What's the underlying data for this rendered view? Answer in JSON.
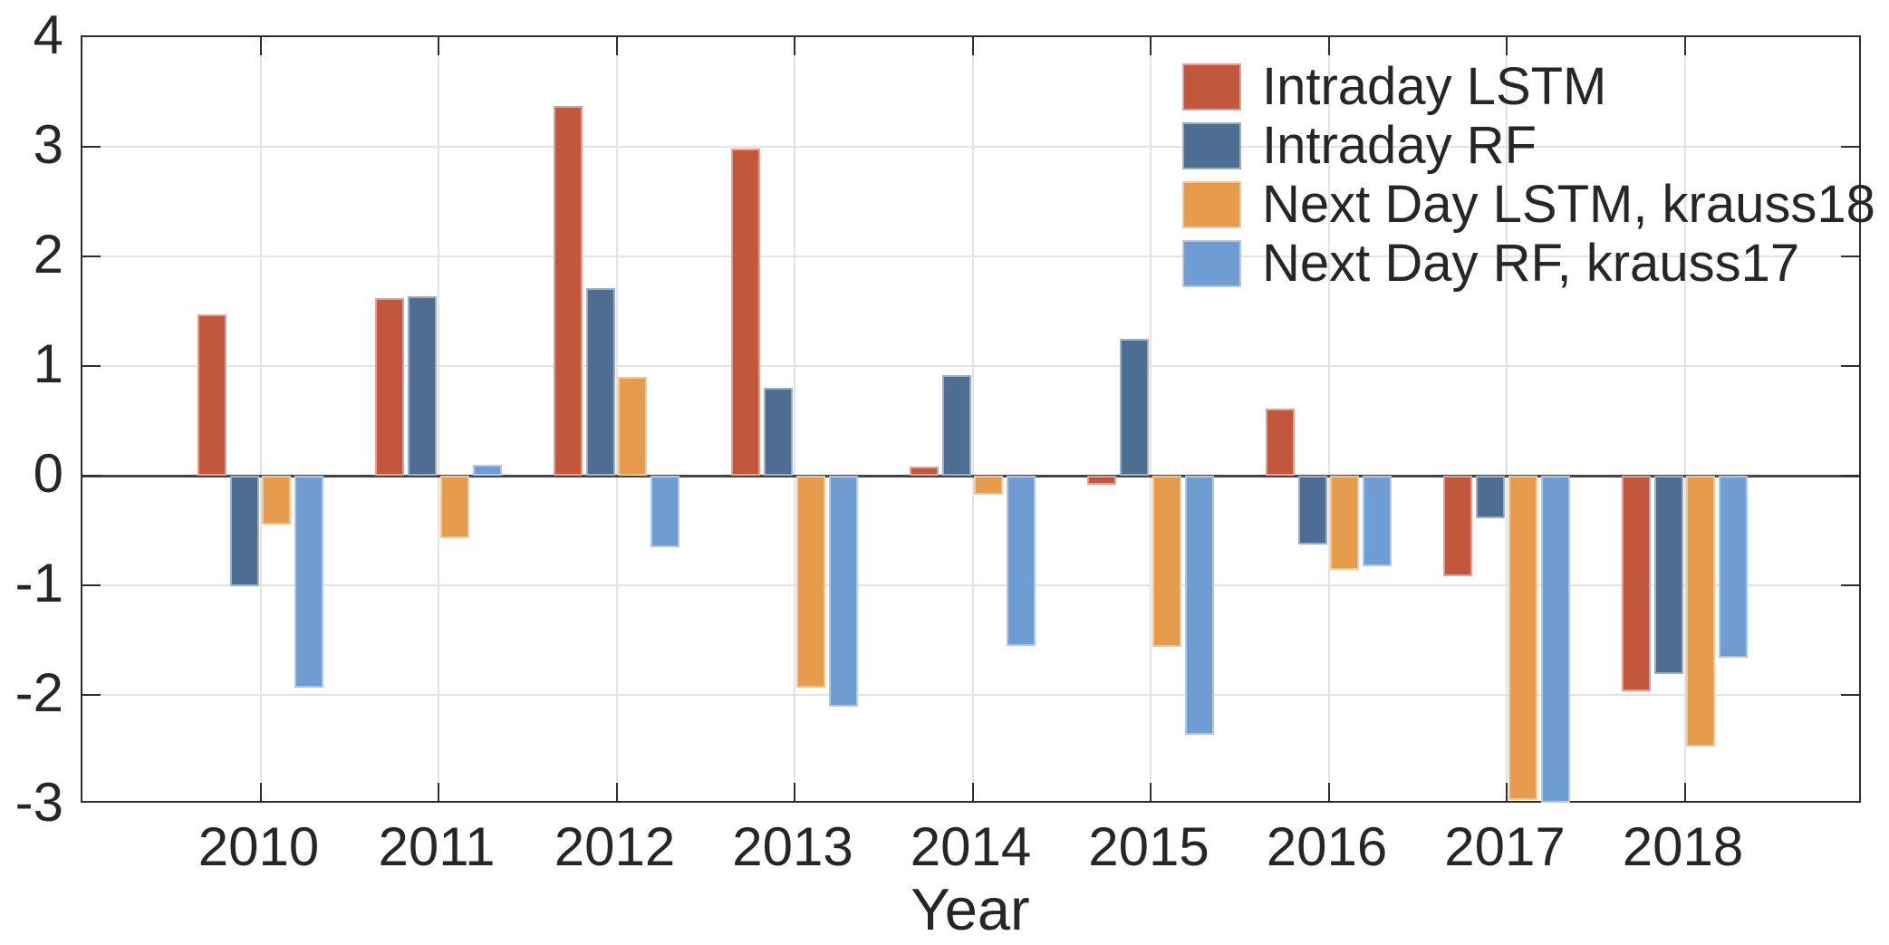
{
  "figure": {
    "background": "#ffffff",
    "text_color": "#262626"
  },
  "axes": {
    "x_label": "Year",
    "x_ticks": [
      "2010",
      "2011",
      "2012",
      "2013",
      "2014",
      "2015",
      "2016",
      "2017",
      "2018"
    ],
    "y_ticks": [
      "4",
      "3",
      "2",
      "1",
      "0",
      "-1",
      "-2",
      "-3"
    ],
    "y_tick_values": [
      4,
      3,
      2,
      1,
      0,
      -1,
      -2,
      -3
    ],
    "grid_color": "#e3e3e3",
    "axis_color": "#2e2e2e",
    "zero_line_color": "#454545"
  },
  "legend": {
    "position": "top-right",
    "items": [
      {
        "label": "Intraday LSTM",
        "color": "#c3573c"
      },
      {
        "label": "Intraday RF",
        "color": "#4d6d93"
      },
      {
        "label": "Next Day LSTM, krauss18",
        "color": "#e69a4b"
      },
      {
        "label": "Next Day RF, krauss17",
        "color": "#6e9cd3"
      }
    ]
  },
  "chart_data": {
    "type": "bar",
    "title": "",
    "xlabel": "Year",
    "ylabel": "",
    "ylim": [
      -3,
      4
    ],
    "grid": true,
    "legend_position": "top-right",
    "categories": [
      "2010",
      "2011",
      "2012",
      "2013",
      "2014",
      "2015",
      "2016",
      "2017",
      "2018"
    ],
    "series": [
      {
        "name": "Intraday LSTM",
        "key": "intraday-lstm",
        "color": "#c3573c",
        "values": [
          1.47,
          1.62,
          3.37,
          2.98,
          0.08,
          -0.08,
          0.61,
          -0.92,
          -1.97
        ]
      },
      {
        "name": "Intraday RF",
        "key": "intraday-rf",
        "color": "#4d6d93",
        "values": [
          -1.01,
          1.64,
          1.71,
          0.8,
          0.92,
          1.25,
          -0.63,
          -0.39,
          -1.81
        ]
      },
      {
        "name": "Next Day LSTM, krauss18",
        "key": "next-day-lstm",
        "color": "#e69a4b",
        "values": [
          -0.45,
          -0.57,
          0.9,
          -1.93,
          -0.17,
          -1.56,
          -0.86,
          -2.96,
          -2.47
        ]
      },
      {
        "name": "Next Day RF, krauss17",
        "key": "next-day-rf",
        "color": "#6e9cd3",
        "values": [
          -1.93,
          0.1,
          -0.65,
          -2.11,
          -1.55,
          -2.36,
          -0.83,
          -2.98,
          -1.66
        ]
      }
    ]
  }
}
